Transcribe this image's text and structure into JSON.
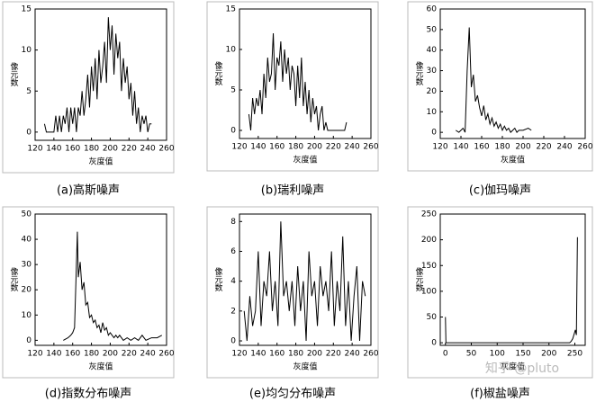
{
  "chart_data": [
    {
      "type": "line",
      "title": "(a)高斯噪声",
      "xlabel": "灰度值",
      "ylabel": "像元数",
      "color": "#000000",
      "xlim": [
        120,
        260
      ],
      "xticks": [
        120,
        140,
        160,
        180,
        200,
        220,
        240,
        260
      ],
      "ylim": [
        -1,
        15
      ],
      "yticks": [
        0,
        5,
        10,
        15
      ],
      "x": [
        130,
        132,
        134,
        136,
        138,
        140,
        142,
        144,
        146,
        148,
        150,
        152,
        154,
        156,
        158,
        160,
        162,
        164,
        166,
        168,
        170,
        172,
        174,
        176,
        178,
        180,
        182,
        184,
        186,
        188,
        190,
        192,
        194,
        196,
        198,
        200,
        202,
        204,
        206,
        208,
        210,
        212,
        214,
        216,
        218,
        220,
        222,
        224,
        226,
        228,
        230,
        232,
        234,
        236,
        238,
        240,
        242,
        244
      ],
      "values": [
        1,
        0,
        0,
        0,
        0,
        0,
        2,
        0,
        2,
        0,
        2,
        1,
        3,
        0,
        3,
        1,
        3,
        0,
        3,
        2,
        5,
        2,
        4,
        7,
        3,
        8,
        5,
        9,
        4,
        10,
        6,
        8,
        11,
        6,
        14,
        10,
        13,
        7,
        12,
        9,
        11,
        5,
        9,
        6,
        8,
        4,
        6,
        2,
        5,
        1,
        3,
        0,
        2,
        1,
        2,
        0,
        1,
        1
      ]
    },
    {
      "type": "line",
      "title": "(b)瑞利噪声",
      "xlabel": "灰度值",
      "ylabel": "像元数",
      "color": "#000000",
      "xlim": [
        120,
        260
      ],
      "xticks": [
        120,
        140,
        160,
        180,
        200,
        220,
        240,
        260
      ],
      "ylim": [
        -1,
        15
      ],
      "yticks": [
        0,
        5,
        10,
        15
      ],
      "x": [
        130,
        132,
        134,
        136,
        138,
        140,
        142,
        144,
        146,
        148,
        150,
        152,
        154,
        156,
        158,
        160,
        162,
        164,
        166,
        168,
        170,
        172,
        174,
        176,
        178,
        180,
        182,
        184,
        186,
        188,
        190,
        192,
        194,
        196,
        198,
        200,
        202,
        204,
        206,
        208,
        210,
        212,
        214,
        220,
        226,
        232,
        234
      ],
      "values": [
        2,
        0,
        4,
        2,
        4,
        3,
        5,
        2,
        7,
        4,
        9,
        6,
        7,
        12,
        5,
        9,
        8,
        11,
        6,
        10,
        7,
        9,
        5,
        8,
        7,
        3,
        8,
        4,
        9,
        3,
        6,
        2,
        5,
        1,
        4,
        2,
        3,
        0,
        2,
        3,
        0,
        1,
        0,
        0,
        0,
        0,
        1
      ]
    },
    {
      "type": "line",
      "title": "(c)伽玛噪声",
      "xlabel": "灰度值",
      "ylabel": "像元数",
      "color": "#000000",
      "xlim": [
        120,
        260
      ],
      "xticks": [
        120,
        140,
        160,
        180,
        200,
        220,
        240,
        260
      ],
      "ylim": [
        -3,
        60
      ],
      "yticks": [
        0,
        10,
        20,
        30,
        40,
        50,
        60
      ],
      "x": [
        135,
        138,
        140,
        142,
        144,
        146,
        148,
        150,
        152,
        154,
        156,
        158,
        160,
        162,
        164,
        166,
        168,
        170,
        172,
        174,
        176,
        178,
        180,
        182,
        184,
        186,
        188,
        190,
        192,
        194,
        196,
        200,
        205,
        208
      ],
      "values": [
        1,
        0,
        1,
        2,
        0,
        30,
        51,
        22,
        28,
        15,
        18,
        12,
        8,
        13,
        6,
        9,
        4,
        7,
        3,
        5,
        2,
        4,
        1,
        3,
        1,
        2,
        0,
        1,
        2,
        0,
        1,
        1,
        2,
        1
      ]
    },
    {
      "type": "line",
      "title": "(d)指数分布噪声",
      "xlabel": "灰度值",
      "ylabel": "像元数",
      "color": "#000000",
      "xlim": [
        120,
        260
      ],
      "xticks": [
        120,
        140,
        160,
        180,
        200,
        220,
        240,
        260
      ],
      "ylim": [
        -2,
        50
      ],
      "yticks": [
        0,
        10,
        20,
        30,
        40,
        50
      ],
      "x": [
        150,
        155,
        158,
        160,
        162,
        164,
        165,
        166,
        168,
        170,
        172,
        174,
        176,
        178,
        180,
        182,
        184,
        186,
        188,
        190,
        192,
        194,
        196,
        198,
        200,
        202,
        204,
        206,
        208,
        210,
        214,
        218,
        222,
        226,
        230,
        234,
        238,
        244,
        250,
        255
      ],
      "values": [
        0,
        1,
        2,
        3,
        5,
        30,
        43,
        25,
        31,
        20,
        23,
        14,
        15,
        9,
        10,
        7,
        8,
        5,
        6,
        3,
        7,
        4,
        5,
        2,
        3,
        2,
        1,
        2,
        1,
        2,
        0,
        1,
        0,
        1,
        0,
        2,
        0,
        1,
        1,
        2
      ]
    },
    {
      "type": "line",
      "title": "(e)均匀分布噪声",
      "xlabel": "灰度值",
      "ylabel": "像元数",
      "color": "#000000",
      "xlim": [
        120,
        260
      ],
      "xticks": [
        120,
        140,
        160,
        180,
        200,
        220,
        240,
        260
      ],
      "ylim": [
        -0.3,
        8.5
      ],
      "yticks": [
        0,
        2,
        4,
        6,
        8
      ],
      "x": [
        125,
        128,
        131,
        134,
        137,
        140,
        143,
        146,
        149,
        152,
        155,
        158,
        161,
        164,
        167,
        170,
        173,
        176,
        179,
        182,
        185,
        188,
        191,
        194,
        197,
        200,
        203,
        206,
        209,
        212,
        215,
        218,
        221,
        224,
        227,
        230,
        233,
        236,
        239,
        242,
        245,
        248,
        251,
        254
      ],
      "values": [
        2,
        0,
        3,
        1,
        2,
        6,
        1,
        4,
        3,
        6,
        2,
        4,
        1,
        8,
        3,
        4,
        2,
        4,
        1,
        5,
        2,
        4,
        0,
        6,
        3,
        4,
        1,
        5,
        3,
        4,
        2,
        6,
        1,
        4,
        2,
        7,
        1,
        4,
        0,
        3,
        5,
        0,
        4,
        3
      ]
    },
    {
      "type": "line",
      "title": "(f)椒盐噪声",
      "xlabel": "灰度值",
      "ylabel": "像元数",
      "color": "#000000",
      "xlim": [
        -10,
        270
      ],
      "xticks": [
        0,
        50,
        100,
        150,
        200,
        250
      ],
      "ylim": [
        -5,
        250
      ],
      "yticks": [
        0,
        50,
        100,
        150,
        200,
        250
      ],
      "x": [
        0,
        1,
        240,
        243,
        246,
        249,
        251,
        253,
        255
      ],
      "values": [
        50,
        0,
        0,
        3,
        8,
        18,
        25,
        15,
        205
      ]
    }
  ],
  "watermark": "知乎 @pluto"
}
